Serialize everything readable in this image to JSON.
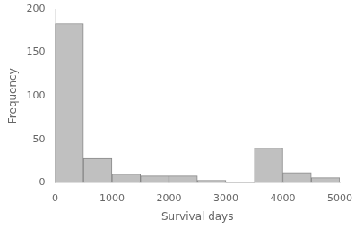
{
  "chart_data": {
    "type": "histogram",
    "xlabel": "Survival days",
    "ylabel": "Frequency",
    "bins": [
      0,
      500,
      1000,
      1500,
      2000,
      2500,
      3000,
      3500,
      4000,
      4500,
      5000
    ],
    "values": [
      183,
      28,
      10,
      8,
      8,
      3,
      1,
      40,
      12,
      6
    ],
    "color": "#c0c0c0",
    "xlim": [
      0,
      5000
    ],
    "ylim": [
      0,
      200
    ],
    "xticks": [
      0,
      1000,
      2000,
      3000,
      4000,
      5000
    ],
    "yticks": [
      0,
      50,
      100,
      150,
      200
    ],
    "grid": false
  }
}
